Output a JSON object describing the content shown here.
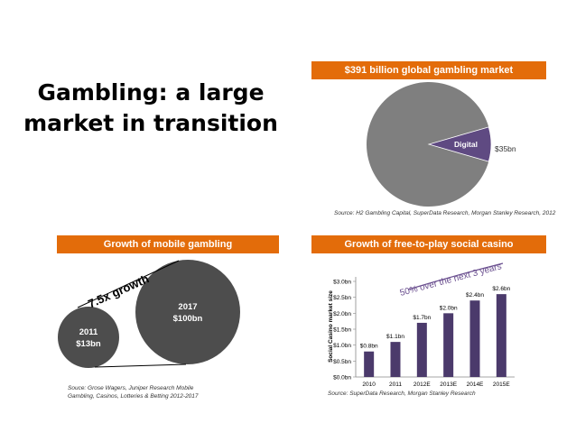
{
  "slide": {
    "title_line1": "Gambling: a large",
    "title_line2": "market in transition"
  },
  "panels": {
    "global": {
      "banner": "$391 billion global gambling market",
      "source": "Source: H2 Gambling Capital, SuperData Research, Morgan Stanley Research, 2012"
    },
    "mobile": {
      "banner": "Growth of mobile gambling",
      "source_line1": "Souce: Grose Wagers, Juniper Research Mobile",
      "source_line2": "Gambling, Casinos, Lotteries & Betting 2012-2017"
    },
    "social": {
      "banner": "Growth of free-to-play social casino",
      "source": "Source: SuperData Research, Morgan Stanley Research"
    }
  },
  "colors": {
    "banner": "#e36c0a",
    "pie_gray": "#7f7f7f",
    "pie_digital": "#5f4a82",
    "bubble": "#4d4d4d",
    "bar": "#4b3a6b",
    "annotation_line": "#6a4f8f"
  },
  "chart_data": [
    {
      "type": "pie",
      "title": "$391 billion global gambling market",
      "slices": [
        {
          "label": "",
          "value": 356
        },
        {
          "label": "Digital",
          "value": 35,
          "value_label": "$35bn"
        }
      ]
    },
    {
      "type": "bubble",
      "title": "Growth of mobile gambling",
      "points": [
        {
          "year": "2011",
          "value": 13,
          "label": "$13bn"
        },
        {
          "year": "2017",
          "value": 100,
          "label": "$100bn"
        }
      ],
      "annotation": "7.5x growth"
    },
    {
      "type": "bar",
      "title": "Growth of free-to-play social casino",
      "categories": [
        "2010",
        "2011",
        "2012E",
        "2013E",
        "2014E",
        "2015E"
      ],
      "values": [
        0.8,
        1.1,
        1.7,
        2.0,
        2.4,
        2.6
      ],
      "value_labels": [
        "$0.8bn",
        "$1.1bn",
        "$1.7bn",
        "$2.0bn",
        "$2.4bn",
        "$2.6bn"
      ],
      "ylabel": "Social Casino market size",
      "ylim": [
        0,
        3
      ],
      "yticks": [
        "$0.0bn",
        "$0.5bn",
        "$1.0bn",
        "$1.5bn",
        "$2.0bn",
        "$2.5bn",
        "$3.0bn"
      ],
      "annotation": "50% over the next 3 years"
    }
  ]
}
